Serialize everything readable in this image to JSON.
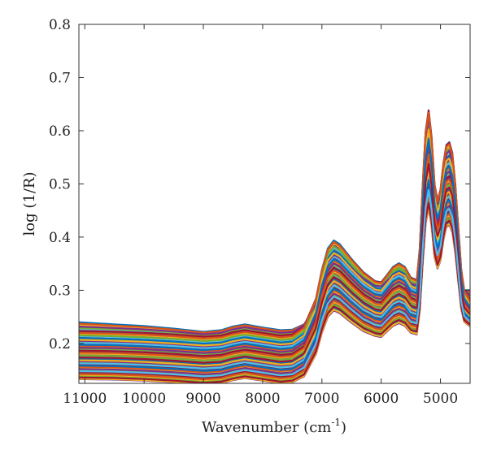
{
  "chart_data": {
    "type": "line",
    "title": "",
    "xlabel": "Wavenumber (cm",
    "xlabel_superscript": "-1",
    "xlabel_suffix": ")",
    "ylabel": "log (1/R)",
    "xlim": [
      11100,
      4500
    ],
    "x_reversed": true,
    "ylim": [
      0.125,
      0.8
    ],
    "xticks": [
      11000,
      10000,
      9000,
      8000,
      7000,
      6000,
      5000
    ],
    "yticks": [
      0.2,
      0.3,
      0.4,
      0.5,
      0.6,
      0.7,
      0.8
    ],
    "xtick_labels": [
      "11000",
      "10000",
      "9000",
      "8000",
      "7000",
      "6000",
      "5000"
    ],
    "ytick_labels": [
      "0.2",
      "0.3",
      "0.4",
      "0.5",
      "0.6",
      "0.7",
      "0.8"
    ],
    "grid": false,
    "legend": "none",
    "palette": [
      "#0072bd",
      "#d95319",
      "#edb120",
      "#7e2f8e",
      "#77ac30",
      "#4dbeee",
      "#a2142f"
    ],
    "series_count": 60,
    "x": [
      11100,
      10500,
      10000,
      9500,
      9000,
      8700,
      8500,
      8300,
      8000,
      7700,
      7500,
      7300,
      7100,
      7000,
      6900,
      6800,
      6700,
      6500,
      6300,
      6100,
      6000,
      5900,
      5800,
      5700,
      5600,
      5500,
      5400,
      5350,
      5300,
      5250,
      5200,
      5150,
      5100,
      5050,
      5000,
      4950,
      4900,
      4850,
      4800,
      4750,
      4700,
      4650,
      4600,
      4550,
      4500
    ],
    "series": [
      {
        "values": [
          0.24,
          0.236,
          0.233,
          0.228,
          0.222,
          0.225,
          0.232,
          0.236,
          0.23,
          0.225,
          0.226,
          0.236,
          0.268,
          0.3,
          0.33,
          0.343,
          0.338,
          0.325,
          0.312,
          0.3,
          0.3,
          0.308,
          0.315,
          0.318,
          0.314,
          0.302,
          0.3,
          0.34,
          0.44,
          0.56,
          0.62,
          0.56,
          0.48,
          0.455,
          0.47,
          0.51,
          0.54,
          0.548,
          0.53,
          0.48,
          0.4,
          0.32,
          0.3,
          0.3,
          0.3
        ]
      },
      {
        "values": [
          0.222,
          0.221,
          0.219,
          0.216,
          0.212,
          0.214,
          0.22,
          0.224,
          0.219,
          0.214,
          0.216,
          0.232,
          0.285,
          0.34,
          0.38,
          0.395,
          0.388,
          0.36,
          0.335,
          0.318,
          0.316,
          0.33,
          0.345,
          0.352,
          0.345,
          0.325,
          0.32,
          0.38,
          0.5,
          0.6,
          0.64,
          0.59,
          0.5,
          0.47,
          0.49,
          0.54,
          0.575,
          0.58,
          0.56,
          0.5,
          0.42,
          0.34,
          0.3,
          0.29,
          0.28
        ]
      },
      {
        "values": [
          0.212,
          0.21,
          0.208,
          0.205,
          0.201,
          0.203,
          0.209,
          0.213,
          0.208,
          0.203,
          0.205,
          0.22,
          0.272,
          0.325,
          0.362,
          0.376,
          0.37,
          0.345,
          0.322,
          0.306,
          0.304,
          0.318,
          0.332,
          0.338,
          0.332,
          0.313,
          0.308,
          0.365,
          0.48,
          0.575,
          0.612,
          0.565,
          0.482,
          0.454,
          0.472,
          0.52,
          0.552,
          0.556,
          0.538,
          0.482,
          0.406,
          0.33,
          0.294,
          0.284,
          0.275
        ]
      },
      {
        "values": [
          0.2,
          0.199,
          0.197,
          0.194,
          0.19,
          0.192,
          0.198,
          0.202,
          0.197,
          0.192,
          0.194,
          0.209,
          0.26,
          0.312,
          0.348,
          0.362,
          0.356,
          0.332,
          0.31,
          0.295,
          0.293,
          0.306,
          0.32,
          0.326,
          0.32,
          0.302,
          0.297,
          0.352,
          0.462,
          0.553,
          0.59,
          0.545,
          0.466,
          0.439,
          0.456,
          0.502,
          0.533,
          0.537,
          0.52,
          0.467,
          0.394,
          0.321,
          0.287,
          0.278,
          0.27
        ]
      },
      {
        "values": [
          0.188,
          0.187,
          0.185,
          0.182,
          0.178,
          0.18,
          0.186,
          0.19,
          0.185,
          0.18,
          0.182,
          0.197,
          0.246,
          0.296,
          0.331,
          0.345,
          0.339,
          0.316,
          0.295,
          0.281,
          0.279,
          0.292,
          0.305,
          0.311,
          0.305,
          0.288,
          0.283,
          0.336,
          0.442,
          0.53,
          0.566,
          0.523,
          0.448,
          0.422,
          0.439,
          0.483,
          0.513,
          0.517,
          0.5,
          0.45,
          0.38,
          0.311,
          0.278,
          0.27,
          0.263
        ]
      },
      {
        "values": [
          0.176,
          0.175,
          0.173,
          0.17,
          0.166,
          0.168,
          0.174,
          0.178,
          0.173,
          0.168,
          0.17,
          0.184,
          0.232,
          0.28,
          0.314,
          0.328,
          0.322,
          0.3,
          0.28,
          0.267,
          0.265,
          0.278,
          0.29,
          0.296,
          0.29,
          0.274,
          0.269,
          0.32,
          0.422,
          0.507,
          0.542,
          0.501,
          0.43,
          0.405,
          0.421,
          0.464,
          0.493,
          0.497,
          0.481,
          0.433,
          0.367,
          0.301,
          0.27,
          0.262,
          0.256
        ]
      },
      {
        "values": [
          0.164,
          0.163,
          0.161,
          0.158,
          0.154,
          0.156,
          0.162,
          0.166,
          0.161,
          0.156,
          0.158,
          0.171,
          0.218,
          0.264,
          0.297,
          0.311,
          0.305,
          0.284,
          0.265,
          0.253,
          0.251,
          0.264,
          0.276,
          0.281,
          0.276,
          0.26,
          0.256,
          0.305,
          0.403,
          0.485,
          0.518,
          0.48,
          0.412,
          0.388,
          0.404,
          0.446,
          0.474,
          0.478,
          0.462,
          0.417,
          0.354,
          0.291,
          0.262,
          0.255,
          0.249
        ]
      },
      {
        "values": [
          0.15,
          0.149,
          0.147,
          0.144,
          0.14,
          0.142,
          0.148,
          0.152,
          0.147,
          0.142,
          0.144,
          0.157,
          0.202,
          0.246,
          0.278,
          0.291,
          0.286,
          0.266,
          0.248,
          0.237,
          0.235,
          0.247,
          0.258,
          0.263,
          0.258,
          0.243,
          0.24,
          0.287,
          0.381,
          0.46,
          0.492,
          0.456,
          0.392,
          0.369,
          0.385,
          0.425,
          0.452,
          0.456,
          0.441,
          0.398,
          0.339,
          0.28,
          0.253,
          0.247,
          0.242
        ]
      },
      {
        "values": [
          0.138,
          0.137,
          0.135,
          0.132,
          0.128,
          0.13,
          0.136,
          0.14,
          0.135,
          0.13,
          0.132,
          0.144,
          0.188,
          0.23,
          0.261,
          0.274,
          0.269,
          0.25,
          0.233,
          0.223,
          0.221,
          0.232,
          0.243,
          0.248,
          0.243,
          0.229,
          0.226,
          0.271,
          0.362,
          0.439,
          0.47,
          0.435,
          0.374,
          0.352,
          0.367,
          0.406,
          0.432,
          0.436,
          0.422,
          0.381,
          0.326,
          0.271,
          0.246,
          0.241,
          0.237
        ]
      },
      {
        "values": [
          0.133,
          0.132,
          0.13,
          0.127,
          0.123,
          0.125,
          0.131,
          0.135,
          0.13,
          0.125,
          0.127,
          0.138,
          0.18,
          0.22,
          0.25,
          0.262,
          0.257,
          0.239,
          0.223,
          0.214,
          0.212,
          0.223,
          0.233,
          0.238,
          0.233,
          0.22,
          0.217,
          0.261,
          0.35,
          0.425,
          0.455,
          0.421,
          0.362,
          0.341,
          0.356,
          0.394,
          0.419,
          0.423,
          0.409,
          0.37,
          0.317,
          0.265,
          0.241,
          0.236,
          0.232
        ]
      }
    ]
  }
}
